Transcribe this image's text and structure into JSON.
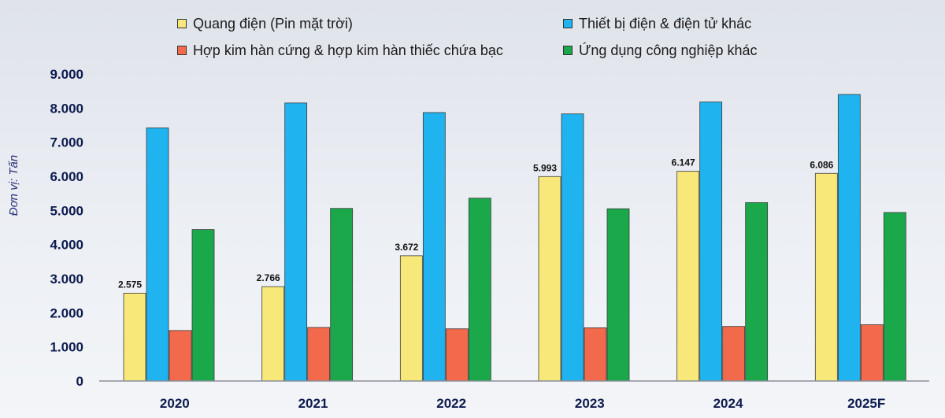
{
  "chart_data": {
    "type": "bar",
    "ylabel": "Đơn vị: Tấn",
    "ylim": [
      0,
      9000
    ],
    "yticks": [
      0,
      1000,
      2000,
      3000,
      4000,
      5000,
      6000,
      7000,
      8000,
      9000
    ],
    "ytick_labels": [
      "0",
      "1.000",
      "2.000",
      "3.000",
      "4.000",
      "5.000",
      "6.000",
      "7.000",
      "8.000",
      "9.000"
    ],
    "categories": [
      "2020",
      "2021",
      "2022",
      "2023",
      "2024",
      "2025F"
    ],
    "legend_position": "top",
    "grid": false,
    "series": [
      {
        "name": "Quang điện (Pin mặt trời)",
        "color": "#f8e87a",
        "values": [
          2575,
          2766,
          3672,
          5993,
          6147,
          6086
        ],
        "data_labels": [
          "2.575",
          "2.766",
          "3.672",
          "5.993",
          "6.147",
          "6.086"
        ]
      },
      {
        "name": "Thiết bị điện & điện tử khác",
        "color": "#1fb3f0",
        "values": [
          7420,
          8150,
          7870,
          7830,
          8180,
          8400
        ]
      },
      {
        "name": "Hợp kim hàn cứng & hợp kim hàn thiếc chứa bạc",
        "color": "#f26a4b",
        "values": [
          1480,
          1570,
          1530,
          1560,
          1600,
          1650
        ]
      },
      {
        "name": "Ứng dụng công nghiệp khác",
        "color": "#1aa84a",
        "values": [
          4440,
          5060,
          5360,
          5050,
          5230,
          4940
        ]
      }
    ]
  }
}
